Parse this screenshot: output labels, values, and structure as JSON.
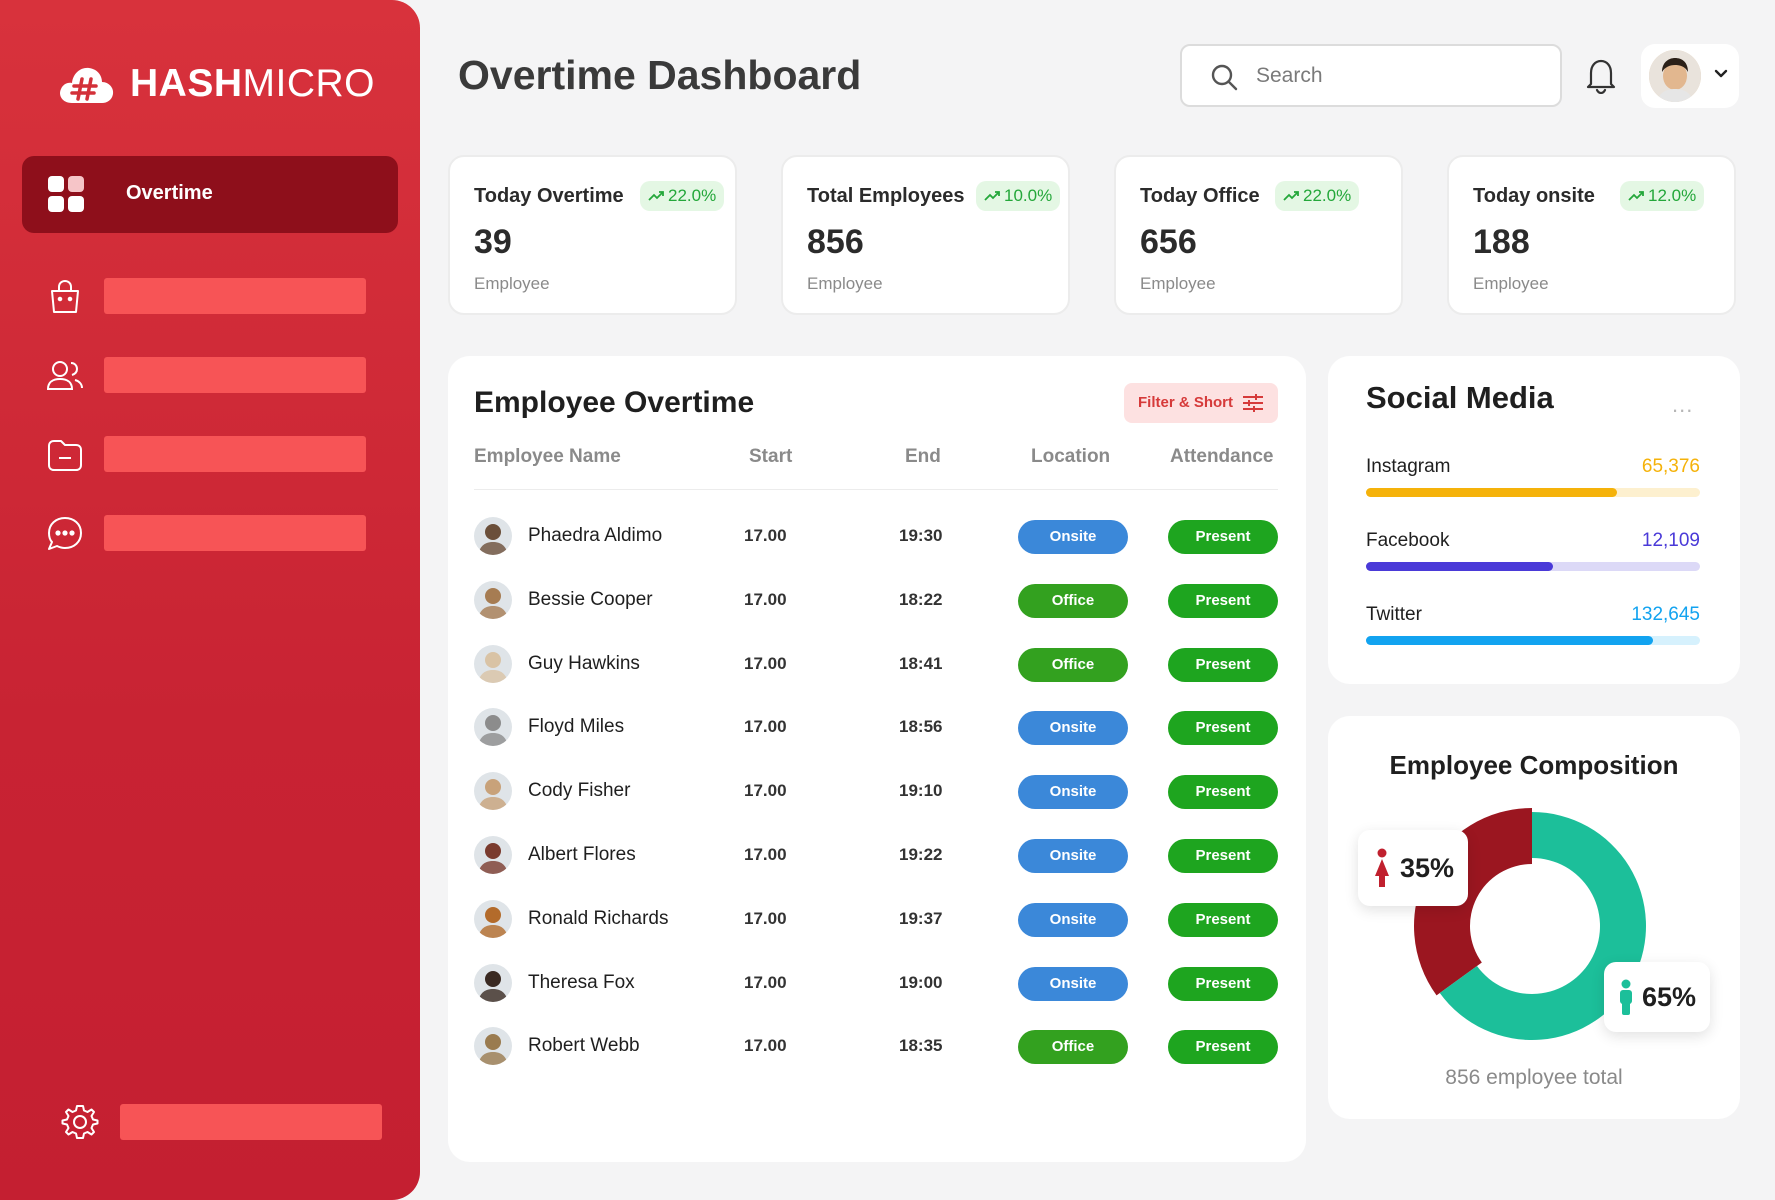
{
  "sidebar": {
    "logo_text_bold": "HASH",
    "logo_text_light": "MICRO",
    "active_item": {
      "label": "Overtime",
      "icon": "grid-icon"
    },
    "items": [
      {
        "icon": "shopping-bag-icon"
      },
      {
        "icon": "users-icon"
      },
      {
        "icon": "folder-icon"
      },
      {
        "icon": "chat-icon"
      }
    ],
    "footer_item": {
      "icon": "gear-icon"
    }
  },
  "header": {
    "title": "Overtime Dashboard",
    "search_placeholder": "Search"
  },
  "stats": [
    {
      "label": "Today Overtime",
      "change": "22.0%",
      "value": "39",
      "unit": "Employee"
    },
    {
      "label": "Total Employees",
      "change": "10.0%",
      "value": "856",
      "unit": "Employee"
    },
    {
      "label": "Today Office",
      "change": "22.0%",
      "value": "656",
      "unit": "Employee"
    },
    {
      "label": "Today onsite",
      "change": "12.0%",
      "value": "188",
      "unit": "Employee"
    }
  ],
  "overtime": {
    "title": "Employee Overtime",
    "filter_label": "Filter & Short",
    "columns": [
      "Employee Name",
      "Start",
      "End",
      "Location",
      "Attendance"
    ],
    "rows": [
      {
        "name": "Phaedra Aldimo",
        "start": "17.00",
        "end": "19:30",
        "location": "Onsite",
        "attendance": "Present"
      },
      {
        "name": "Bessie Cooper",
        "start": "17.00",
        "end": "18:22",
        "location": "Office",
        "attendance": "Present"
      },
      {
        "name": "Guy Hawkins",
        "start": "17.00",
        "end": "18:41",
        "location": "Office",
        "attendance": "Present"
      },
      {
        "name": "Floyd Miles",
        "start": "17.00",
        "end": "18:56",
        "location": "Onsite",
        "attendance": "Present"
      },
      {
        "name": "Cody Fisher",
        "start": "17.00",
        "end": "19:10",
        "location": "Onsite",
        "attendance": "Present"
      },
      {
        "name": "Albert Flores",
        "start": "17.00",
        "end": "19:22",
        "location": "Onsite",
        "attendance": "Present"
      },
      {
        "name": "Ronald Richards",
        "start": "17.00",
        "end": "19:37",
        "location": "Onsite",
        "attendance": "Present"
      },
      {
        "name": "Theresa Fox",
        "start": "17.00",
        "end": "19:00",
        "location": "Onsite",
        "attendance": "Present"
      },
      {
        "name": "Robert Webb",
        "start": "17.00",
        "end": "18:35",
        "location": "Office",
        "attendance": "Present"
      }
    ]
  },
  "social": {
    "title": "Social Media",
    "more": "...",
    "items": [
      {
        "name": "Instagram",
        "value": "65,376",
        "fraction": 0.75,
        "color": "#f5b20a",
        "track": "#fdf0cf"
      },
      {
        "name": "Facebook",
        "value": "12,109",
        "fraction": 0.56,
        "color": "#4a3ad8",
        "track": "#dcd9f7"
      },
      {
        "name": "Twitter",
        "value": "132,645",
        "fraction": 0.86,
        "color": "#12a3f0",
        "track": "#d6f1fd"
      }
    ]
  },
  "composition": {
    "title": "Employee Composition",
    "footer": "856 employee total",
    "female_pct": "35%",
    "male_pct": "65%",
    "female_color": "#9b1620",
    "male_color": "#1cbf9a"
  },
  "chart_data": {
    "type": "pie",
    "title": "Employee Composition",
    "categories": [
      "Female",
      "Male"
    ],
    "values": [
      35,
      65
    ]
  }
}
